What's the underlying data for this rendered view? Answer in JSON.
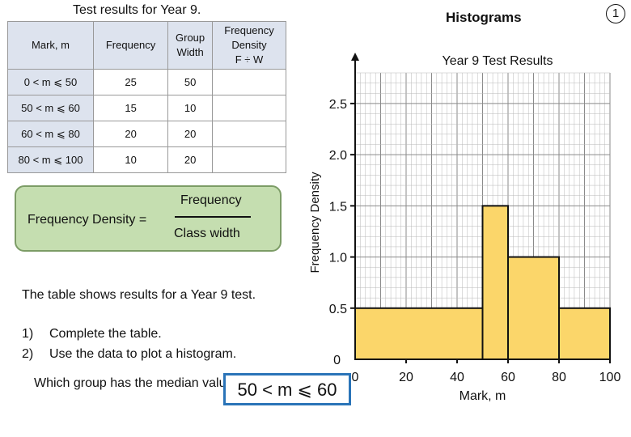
{
  "worksheet": {
    "table_title": "Test results for Year 9.",
    "heading": "Histograms",
    "page_number": "1"
  },
  "table": {
    "headers": {
      "mark": "Mark, m",
      "frequency": "Frequency",
      "group_width": [
        "Group",
        "Width"
      ],
      "frequency_density": [
        "Frequency",
        "Density",
        "F ÷ W"
      ]
    },
    "rows": [
      {
        "range": "0 < m ⩽ 50",
        "frequency": "25",
        "width": "50",
        "density": ""
      },
      {
        "range": "50 < m ⩽ 60",
        "frequency": "15",
        "width": "10",
        "density": ""
      },
      {
        "range": "60 < m ⩽ 80",
        "frequency": "20",
        "width": "20",
        "density": ""
      },
      {
        "range": "80 < m ⩽ 100",
        "frequency": "10",
        "width": "20",
        "density": ""
      }
    ]
  },
  "formula": {
    "label": "Frequency Density =",
    "numerator": "Frequency",
    "denominator": "Class width"
  },
  "text": {
    "description": "The table shows results for a Year 9 test.",
    "tasks": [
      {
        "number": "1)",
        "text": "Complete the table."
      },
      {
        "number": "2)",
        "text": "Use the data to plot a histogram."
      }
    ],
    "question": "Which group has the median value?",
    "answer": "50 < m ⩽ 60"
  },
  "chart_data": {
    "type": "histogram",
    "title": "Year 9 Test Results",
    "xlabel": "Mark, m",
    "ylabel": "Frequency Density",
    "xlim": [
      0,
      100
    ],
    "ylim": [
      0,
      2.8
    ],
    "x_ticks": [
      0,
      20,
      40,
      60,
      80,
      100
    ],
    "x_tick_labels": [
      "0",
      "20",
      "40",
      "60",
      "80",
      "100"
    ],
    "y_ticks": [
      0.5,
      1.0,
      1.5,
      2.0,
      2.5
    ],
    "y_tick_labels": [
      "0.5",
      "1.0",
      "1.5",
      "2.0",
      "2.5"
    ],
    "origin_label": "0",
    "grid": true,
    "bars": [
      {
        "from": 0,
        "to": 50,
        "density": 0.5
      },
      {
        "from": 50,
        "to": 60,
        "density": 1.5
      },
      {
        "from": 60,
        "to": 80,
        "density": 1.0
      },
      {
        "from": 80,
        "to": 100,
        "density": 0.5
      }
    ],
    "bar_color": "#fbd66a",
    "grid_color": "#b8b8b8"
  },
  "colors": {
    "header_fill": "#dde3ee",
    "formula_fill": "#c5deb0",
    "answer_border": "#2a74b8"
  }
}
